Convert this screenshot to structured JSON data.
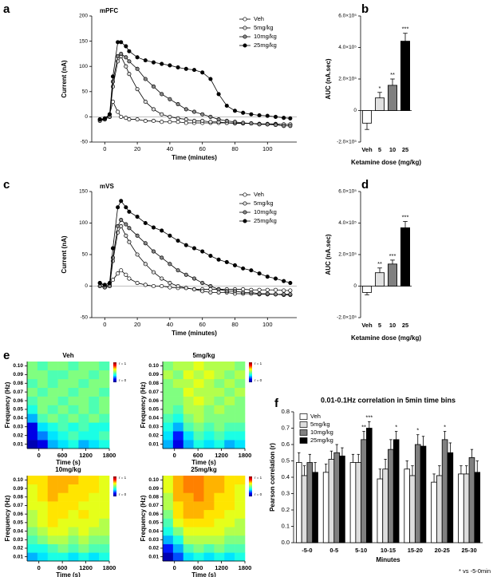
{
  "chart_data": [
    {
      "type": "line",
      "panel": "a",
      "title": "mPFC",
      "xlabel": "Time (minutes)",
      "ylabel": "Current (nA)",
      "x": [
        -3,
        0,
        3,
        5,
        8,
        10,
        13,
        15,
        20,
        25,
        30,
        35,
        40,
        45,
        50,
        55,
        60,
        65,
        70,
        75,
        80,
        85,
        90,
        95,
        100,
        105,
        110,
        114
      ],
      "xlim": [
        -8,
        118
      ],
      "xticks": [
        0,
        20,
        40,
        60,
        80,
        100
      ],
      "ylim": [
        -50,
        200
      ],
      "yticks": [
        -50,
        0,
        50,
        100,
        150,
        200
      ],
      "series": [
        {
          "name": "Veh",
          "color": "#ffffff",
          "values": [
            -5,
            -5,
            5,
            30,
            10,
            0,
            -2,
            -5,
            -5,
            -8,
            -8,
            -10,
            -10,
            -10,
            -12,
            -12,
            -12,
            -12,
            -12,
            -12,
            -13,
            -13,
            -13,
            -14,
            -14,
            -14,
            -15,
            -15
          ]
        },
        {
          "name": "5mg/kg",
          "color": "#dddddd",
          "values": [
            -5,
            -5,
            0,
            60,
            110,
            120,
            100,
            85,
            55,
            30,
            15,
            5,
            0,
            -3,
            -5,
            -8,
            -8,
            -10,
            -10,
            -12,
            -12,
            -13,
            -13,
            -14,
            -15,
            -15,
            -15,
            -15
          ]
        },
        {
          "name": "10mg/kg",
          "color": "#888888",
          "values": [
            -8,
            -5,
            0,
            70,
            120,
            125,
            118,
            110,
            95,
            75,
            60,
            45,
            35,
            25,
            15,
            10,
            5,
            0,
            -5,
            -8,
            -10,
            -12,
            -13,
            -15,
            -15,
            -16,
            -18,
            -18
          ]
        },
        {
          "name": "25mg/kg",
          "color": "#000000",
          "values": [
            -5,
            -3,
            5,
            80,
            148,
            148,
            140,
            130,
            118,
            112,
            108,
            105,
            102,
            98,
            95,
            93,
            88,
            75,
            45,
            22,
            12,
            8,
            5,
            3,
            2,
            0,
            -2,
            -3
          ]
        }
      ]
    },
    {
      "type": "bar",
      "panel": "b",
      "xlabel": "Ketamine dose (mg/kg)",
      "ylabel": "AUC (nA.sec)",
      "categories": [
        "Veh",
        "5",
        "10",
        "25"
      ],
      "values": [
        -80000,
        80000,
        160000,
        440000
      ],
      "errors": [
        40000,
        35000,
        40000,
        50000
      ],
      "annotations": [
        null,
        "*",
        "**",
        "***"
      ],
      "colors": [
        "#ffffff",
        "#e0e0e0",
        "#808080",
        "#000000"
      ],
      "ylim": [
        -200000,
        600000
      ],
      "yticks": [
        {
          "value": -200000,
          "label": "-2.0×10⁵"
        },
        0,
        {
          "value": 200000,
          "label": "2.0×10⁵"
        },
        {
          "value": 400000,
          "label": "4.0×10⁵"
        },
        {
          "value": 600000,
          "label": "6.0×10⁵"
        }
      ]
    },
    {
      "type": "line",
      "panel": "c",
      "title": "mVS",
      "xlabel": "Time (minutes)",
      "ylabel": "Current (nA)",
      "x": [
        -3,
        0,
        3,
        5,
        8,
        10,
        13,
        15,
        20,
        25,
        30,
        35,
        40,
        45,
        50,
        55,
        60,
        65,
        70,
        75,
        80,
        85,
        90,
        95,
        100,
        105,
        110,
        114
      ],
      "xlim": [
        -8,
        118
      ],
      "xticks": [
        0,
        20,
        40,
        60,
        80,
        100
      ],
      "ylim": [
        -50,
        150
      ],
      "yticks": [
        -50,
        0,
        50,
        100,
        150
      ],
      "series": [
        {
          "name": "Veh",
          "color": "#ffffff",
          "values": [
            5,
            0,
            2,
            10,
            20,
            25,
            18,
            12,
            5,
            2,
            0,
            0,
            -2,
            -3,
            -3,
            -5,
            -5,
            -5,
            -5,
            -5,
            -5,
            -5,
            -6,
            -6,
            -6,
            -6,
            -7,
            -7
          ]
        },
        {
          "name": "5mg/kg",
          "color": "#dddddd",
          "values": [
            0,
            -2,
            0,
            40,
            85,
            95,
            80,
            70,
            50,
            35,
            22,
            12,
            5,
            0,
            -3,
            -5,
            -8,
            -10,
            -10,
            -10,
            -12,
            -12,
            -12,
            -13,
            -13,
            -13,
            -14,
            -14
          ]
        },
        {
          "name": "10mg/kg",
          "color": "#888888",
          "values": [
            0,
            -2,
            0,
            45,
            95,
            105,
            98,
            92,
            80,
            68,
            55,
            45,
            35,
            25,
            18,
            12,
            5,
            0,
            -5,
            -8,
            -8,
            -10,
            -10,
            -12,
            -12,
            -13,
            -13,
            -13
          ]
        },
        {
          "name": "25mg/kg",
          "color": "#000000",
          "values": [
            5,
            2,
            5,
            60,
            125,
            135,
            125,
            118,
            110,
            100,
            93,
            88,
            80,
            72,
            65,
            60,
            55,
            48,
            42,
            38,
            33,
            28,
            25,
            20,
            15,
            12,
            8,
            5
          ]
        }
      ]
    },
    {
      "type": "bar",
      "panel": "d",
      "xlabel": "Ketamine dose (mg/kg)",
      "ylabel": "AUC (nA.sec)",
      "categories": [
        "Veh",
        "5",
        "10",
        "25"
      ],
      "values": [
        -40000,
        85000,
        140000,
        370000
      ],
      "errors": [
        15000,
        30000,
        25000,
        40000
      ],
      "annotations": [
        null,
        "**",
        "***",
        "***"
      ],
      "colors": [
        "#ffffff",
        "#e0e0e0",
        "#808080",
        "#000000"
      ],
      "ylim": [
        -200000,
        600000
      ],
      "yticks": [
        {
          "value": -200000,
          "label": "-2.0×10⁵"
        },
        0,
        {
          "value": 200000,
          "label": "2.0×10⁵"
        },
        {
          "value": 400000,
          "label": "4.0×10⁵"
        },
        {
          "value": 600000,
          "label": "6.0×10⁵"
        }
      ]
    },
    {
      "type": "heatmap",
      "panel": "e",
      "title": "Veh",
      "xlabel": "Time (s)",
      "ylabel": "Frequency (Hz)",
      "colorbar_labels": [
        "r = 1",
        "r = 0"
      ],
      "xlim": [
        -300,
        1800
      ],
      "xticks": [
        0,
        600,
        1200,
        1800
      ],
      "ylim": [
        0.005,
        0.105
      ],
      "yticks": [
        0.01,
        0.02,
        0.03,
        0.04,
        0.05,
        0.06,
        0.07,
        0.08,
        0.09,
        {
          "value": 0.1,
          "label": "0.10"
        }
      ],
      "values": [
        [
          0.05,
          0.1,
          0.3,
          0.35,
          0.4,
          0.3,
          0.35,
          0.4
        ],
        [
          0.1,
          0.25,
          0.35,
          0.4,
          0.45,
          0.4,
          0.4,
          0.45
        ],
        [
          0.1,
          0.35,
          0.4,
          0.45,
          0.4,
          0.45,
          0.4,
          0.4
        ],
        [
          0.3,
          0.45,
          0.5,
          0.45,
          0.5,
          0.45,
          0.5,
          0.45
        ],
        [
          0.4,
          0.5,
          0.45,
          0.5,
          0.45,
          0.5,
          0.45,
          0.5
        ],
        [
          0.45,
          0.5,
          0.5,
          0.45,
          0.5,
          0.5,
          0.45,
          0.5
        ],
        [
          0.5,
          0.45,
          0.5,
          0.5,
          0.45,
          0.5,
          0.5,
          0.45
        ],
        [
          0.45,
          0.5,
          0.45,
          0.5,
          0.5,
          0.45,
          0.5,
          0.5
        ],
        [
          0.5,
          0.5,
          0.45,
          0.45,
          0.5,
          0.5,
          0.45,
          0.5
        ],
        [
          0.5,
          0.45,
          0.5,
          0.5,
          0.45,
          0.5,
          0.5,
          0.45
        ]
      ]
    },
    {
      "type": "heatmap",
      "title": "5mg/kg",
      "xlabel": "Time (s)",
      "ylabel": "Frequency (Hz)",
      "colorbar_labels": [
        "r = 1",
        "r = 0"
      ],
      "xlim": [
        -300,
        1800
      ],
      "xticks": [
        0,
        600,
        1200,
        1800
      ],
      "ylim": [
        0.005,
        0.105
      ],
      "yticks": [
        0.01,
        0.02,
        0.03,
        0.04,
        0.05,
        0.06,
        0.07,
        0.08,
        0.09,
        {
          "value": 0.1,
          "label": "0.10"
        }
      ],
      "values": [
        [
          0.3,
          0.1,
          0.3,
          0.4,
          0.35,
          0.4,
          0.3,
          0.35
        ],
        [
          0.35,
          0.15,
          0.35,
          0.45,
          0.4,
          0.45,
          0.4,
          0.4
        ],
        [
          0.4,
          0.3,
          0.45,
          0.5,
          0.45,
          0.5,
          0.45,
          0.45
        ],
        [
          0.45,
          0.4,
          0.5,
          0.55,
          0.5,
          0.5,
          0.5,
          0.5
        ],
        [
          0.5,
          0.45,
          0.55,
          0.55,
          0.5,
          0.55,
          0.5,
          0.5
        ],
        [
          0.5,
          0.5,
          0.55,
          0.6,
          0.55,
          0.5,
          0.55,
          0.5
        ],
        [
          0.5,
          0.5,
          0.6,
          0.55,
          0.55,
          0.55,
          0.5,
          0.55
        ],
        [
          0.5,
          0.55,
          0.55,
          0.6,
          0.55,
          0.5,
          0.55,
          0.5
        ],
        [
          0.55,
          0.5,
          0.6,
          0.55,
          0.6,
          0.55,
          0.5,
          0.55
        ],
        [
          0.5,
          0.55,
          0.55,
          0.6,
          0.55,
          0.55,
          0.55,
          0.5
        ]
      ]
    },
    {
      "type": "heatmap",
      "title": "10mg/kg",
      "xlabel": "Time (s)",
      "ylabel": "Frequency (Hz)",
      "colorbar_labels": [
        "r = 1",
        "r = 0"
      ],
      "xlim": [
        -300,
        1800
      ],
      "xticks": [
        0,
        600,
        1200,
        1800
      ],
      "ylim": [
        0.005,
        0.105
      ],
      "yticks": [
        0.01,
        0.02,
        0.03,
        0.04,
        0.05,
        0.06,
        0.07,
        0.08,
        0.09,
        {
          "value": 0.1,
          "label": "0.10"
        }
      ],
      "values": [
        [
          0.3,
          0.35,
          0.4,
          0.4,
          0.35,
          0.4,
          0.35,
          0.4
        ],
        [
          0.4,
          0.4,
          0.45,
          0.5,
          0.45,
          0.5,
          0.45,
          0.45
        ],
        [
          0.45,
          0.5,
          0.55,
          0.55,
          0.5,
          0.55,
          0.5,
          0.5
        ],
        [
          0.5,
          0.55,
          0.6,
          0.6,
          0.55,
          0.6,
          0.55,
          0.55
        ],
        [
          0.55,
          0.6,
          0.65,
          0.6,
          0.6,
          0.6,
          0.6,
          0.55
        ],
        [
          0.55,
          0.6,
          0.65,
          0.65,
          0.6,
          0.65,
          0.6,
          0.6
        ],
        [
          0.6,
          0.6,
          0.65,
          0.65,
          0.65,
          0.6,
          0.6,
          0.6
        ],
        [
          0.6,
          0.65,
          0.7,
          0.65,
          0.65,
          0.65,
          0.6,
          0.6
        ],
        [
          0.6,
          0.65,
          0.7,
          0.7,
          0.65,
          0.65,
          0.65,
          0.6
        ],
        [
          0.65,
          0.65,
          0.7,
          0.7,
          0.7,
          0.65,
          0.65,
          0.6
        ]
      ]
    },
    {
      "type": "heatmap",
      "title": "25mg/kg",
      "xlabel": "Time (s)",
      "ylabel": "Frequency (Hz)",
      "colorbar_labels": [
        "r = 1",
        "r = 0"
      ],
      "xlim": [
        -300,
        1800
      ],
      "xticks": [
        0,
        600,
        1200,
        1800
      ],
      "ylim": [
        0.005,
        0.105
      ],
      "yticks": [
        0.01,
        0.02,
        0.03,
        0.04,
        0.05,
        0.06,
        0.07,
        0.08,
        0.09,
        {
          "value": 0.1,
          "label": "0.10"
        }
      ],
      "values": [
        [
          0.05,
          0.2,
          0.35,
          0.4,
          0.35,
          0.4,
          0.35,
          0.4
        ],
        [
          0.15,
          0.3,
          0.45,
          0.5,
          0.45,
          0.5,
          0.45,
          0.45
        ],
        [
          0.3,
          0.4,
          0.55,
          0.55,
          0.55,
          0.55,
          0.5,
          0.5
        ],
        [
          0.4,
          0.5,
          0.6,
          0.6,
          0.6,
          0.6,
          0.55,
          0.55
        ],
        [
          0.45,
          0.6,
          0.65,
          0.65,
          0.65,
          0.6,
          0.6,
          0.55
        ],
        [
          0.5,
          0.65,
          0.7,
          0.7,
          0.65,
          0.65,
          0.6,
          0.6
        ],
        [
          0.55,
          0.65,
          0.7,
          0.7,
          0.7,
          0.65,
          0.65,
          0.6
        ],
        [
          0.55,
          0.7,
          0.7,
          0.75,
          0.7,
          0.65,
          0.65,
          0.6
        ],
        [
          0.6,
          0.7,
          0.75,
          0.75,
          0.7,
          0.7,
          0.65,
          0.6
        ],
        [
          0.6,
          0.7,
          0.75,
          0.75,
          0.7,
          0.7,
          0.65,
          0.65
        ]
      ]
    },
    {
      "type": "bar",
      "panel": "f",
      "title": "0.01-0.1Hz correlation in 5min time bins",
      "xlabel": "Minutes",
      "ylabel": "Pearson correlation (r)",
      "note": "* vs -5-0min",
      "categories": [
        "-5-0",
        "0-5",
        "5-10",
        "10-15",
        "15-20",
        "20-25",
        "25-30"
      ],
      "ylim": [
        0,
        0.8
      ],
      "yticks": [
        {
          "value": 0,
          "label": "0.0"
        },
        0.1,
        0.2,
        0.3,
        0.4,
        0.5,
        0.6,
        0.7,
        0.8
      ],
      "series": [
        {
          "name": "Veh",
          "color": "#ffffff",
          "values": [
            0.49,
            0.43,
            0.49,
            0.39,
            0.45,
            0.37,
            0.42
          ],
          "errors": [
            0.06,
            0.05,
            0.05,
            0.06,
            0.05,
            0.05,
            0.05
          ],
          "annotations": [
            null,
            null,
            null,
            null,
            null,
            null,
            null
          ]
        },
        {
          "name": "5mg/kg",
          "color": "#dddddd",
          "values": [
            0.41,
            0.51,
            0.49,
            0.45,
            0.41,
            0.41,
            0.42
          ],
          "errors": [
            0.06,
            0.05,
            0.05,
            0.06,
            0.06,
            0.06,
            0.05
          ],
          "annotations": [
            null,
            null,
            null,
            null,
            null,
            null,
            null
          ]
        },
        {
          "name": "10mg/kg",
          "color": "#808080",
          "values": [
            0.49,
            0.55,
            0.63,
            0.57,
            0.6,
            0.63,
            0.52
          ],
          "errors": [
            0.05,
            0.05,
            0.05,
            0.06,
            0.06,
            0.05,
            0.05
          ],
          "annotations": [
            null,
            null,
            "**",
            null,
            "*",
            "*",
            null
          ]
        },
        {
          "name": "25mg/kg",
          "color": "#000000",
          "values": [
            0.43,
            0.53,
            0.7,
            0.63,
            0.59,
            0.55,
            0.43
          ],
          "errors": [
            0.06,
            0.05,
            0.04,
            0.05,
            0.06,
            0.06,
            0.07
          ],
          "annotations": [
            null,
            null,
            "***",
            "*",
            null,
            null,
            null
          ]
        }
      ]
    }
  ]
}
